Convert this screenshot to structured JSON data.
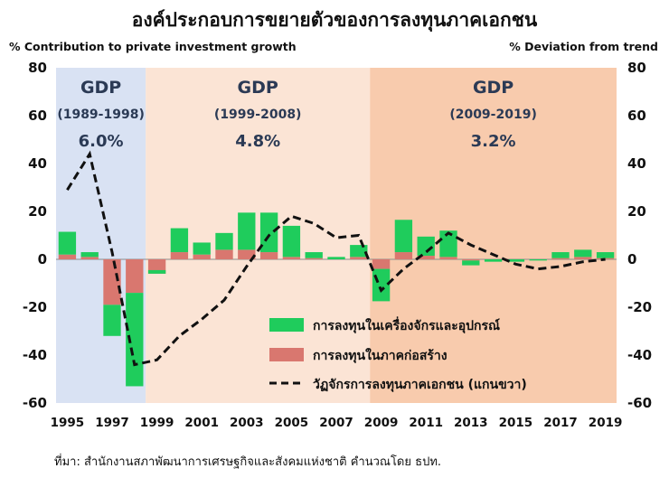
{
  "title": "องค์ประกอบการขยายตัวของการลงทุนภาคเอกชน",
  "source": "ที่มา: สำนักงานสภาพัฒนาการเศรษฐกิจและสังคมแห่งชาติ คำนวณโดย ธปท.",
  "colors": {
    "machinery": "#1fcc5c",
    "construction": "#d9776f",
    "line": "#111111",
    "period1_bg": "#d9e2f3",
    "period2_bg": "#fbe4d5",
    "period3_bg": "#f8cbad",
    "period_text": "#2b3a55"
  },
  "chart_data": {
    "type": "bar",
    "ylabel": "% Contribution to private investment growth",
    "y2label": "% Deviation from trend",
    "ylim": [
      -60,
      80
    ],
    "y2lim": [
      -60,
      80
    ],
    "yticks": [
      -60,
      -40,
      -20,
      0,
      20,
      40,
      60,
      80
    ],
    "x": [
      1995,
      1996,
      1997,
      1998,
      1999,
      2000,
      2001,
      2002,
      2003,
      2004,
      2005,
      2006,
      2007,
      2008,
      2009,
      2010,
      2011,
      2012,
      2013,
      2014,
      2015,
      2016,
      2017,
      2018,
      2019
    ],
    "xtick_labels": [
      "1995",
      "1997",
      "1999",
      "2001",
      "2003",
      "2005",
      "2007",
      "2009",
      "2011",
      "2013",
      "2015",
      "2017",
      "2019"
    ],
    "xtick_years": [
      1995,
      1997,
      1999,
      2001,
      2003,
      2005,
      2007,
      2009,
      2011,
      2013,
      2015,
      2017,
      2019
    ],
    "periods": [
      {
        "label": "GDP",
        "range": "(1989-1998)",
        "value": "6.0%",
        "start": 1995,
        "end": 1998
      },
      {
        "label": "GDP",
        "range": "(1999-2008)",
        "value": "4.8%",
        "start": 1999,
        "end": 2008
      },
      {
        "label": "GDP",
        "range": "(2009-2019)",
        "value": "3.2%",
        "start": 2009,
        "end": 2019
      }
    ],
    "series": [
      {
        "name": "การลงทุนในเครื่องจักรและอุปกรณ์",
        "type": "bar",
        "values": [
          9.5,
          2.0,
          -13,
          -39,
          1.5,
          10,
          5,
          7,
          15.5,
          16.5,
          13,
          2.5,
          1,
          5,
          -13.5,
          13.5,
          8,
          11,
          -2,
          -1,
          -1,
          -0.5,
          2.5,
          3,
          2.5
        ]
      },
      {
        "name": "การลงทุนในภาคก่อสร้าง",
        "type": "bar",
        "values": [
          2,
          1,
          -19,
          -14,
          -6,
          3,
          2,
          4,
          4,
          3,
          1,
          0.5,
          0,
          1,
          -4,
          3,
          1.5,
          1,
          -0.5,
          0,
          0,
          0,
          0.5,
          1,
          0.5
        ]
      },
      {
        "name": "วัฏจักรการลงทุนภาคเอกชน (แกนขวา)",
        "type": "line",
        "axis": "right",
        "values": [
          29,
          44,
          3,
          -44,
          -42,
          -32,
          -25,
          -17,
          -3,
          10,
          18,
          15,
          9,
          10,
          -13,
          -4,
          3,
          11,
          6,
          2,
          -2,
          -4,
          -3,
          -1,
          0
        ]
      }
    ]
  }
}
